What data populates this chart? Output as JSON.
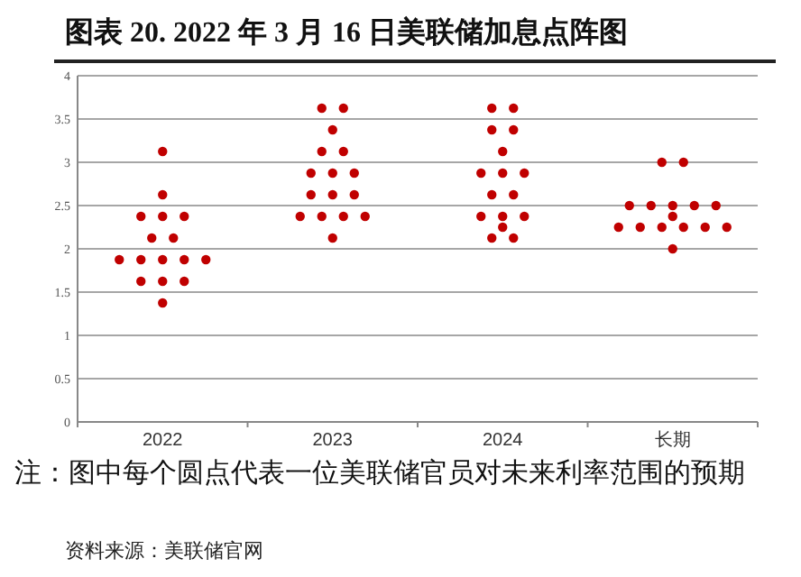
{
  "chart_data": {
    "type": "scatter",
    "title": "图表 20. 2022 年 3 月 16 日美联储加息点阵图",
    "categories": [
      "2022",
      "2023",
      "2024",
      "长期"
    ],
    "series": [
      {
        "color": "#c00000",
        "values": [
          3.125,
          3.625,
          3.625,
          3
        ]
      },
      {
        "color": "#c00000",
        "values": [
          2.625,
          3.625,
          3.625,
          3
        ]
      },
      {
        "color": "#c00000",
        "values": [
          2.375,
          3.375,
          3.375,
          2.5
        ]
      },
      {
        "color": "#c00000",
        "values": [
          2.375,
          3.125,
          3.375,
          2.5
        ]
      },
      {
        "color": "#c00000",
        "values": [
          2.375,
          3.125,
          3.125,
          2.5
        ]
      },
      {
        "color": "#c00000",
        "values": [
          2.125,
          2.875,
          2.875,
          2.5
        ]
      },
      {
        "color": "#c00000",
        "values": [
          2.125,
          2.875,
          2.875,
          2.5
        ]
      },
      {
        "color": "#c00000",
        "values": [
          1.875,
          2.875,
          2.875,
          2.375
        ]
      },
      {
        "color": "#c00000",
        "values": [
          1.875,
          2.625,
          2.625,
          2.25
        ]
      },
      {
        "color": "#c00000",
        "values": [
          1.875,
          2.625,
          2.625,
          2.25
        ]
      },
      {
        "color": "#c00000",
        "values": [
          1.875,
          2.625,
          2.375,
          2.25
        ]
      },
      {
        "color": "#c00000",
        "values": [
          1.875,
          2.375,
          2.375,
          2.25
        ]
      },
      {
        "color": "#c00000",
        "values": [
          1.625,
          2.375,
          2.375,
          2.25
        ]
      },
      {
        "color": "#c00000",
        "values": [
          1.625,
          2.375,
          2.25,
          2.25
        ]
      },
      {
        "color": "#c00000",
        "values": [
          1.625,
          2.375,
          2.125,
          2
        ]
      },
      {
        "color": "#c00000",
        "values": [
          1.375,
          2.125,
          2.125,
          null
        ]
      }
    ],
    "ylim": [
      0,
      4
    ],
    "yticks": [
      0,
      0.5,
      1,
      1.5,
      2,
      2.5,
      3,
      3.5,
      4
    ],
    "grid": "y",
    "marker": "circle",
    "annotations": [
      "注：图中每个圆点代表一位美联储官员对未来利率范围的预期",
      "资料来源：美联储官网"
    ]
  }
}
